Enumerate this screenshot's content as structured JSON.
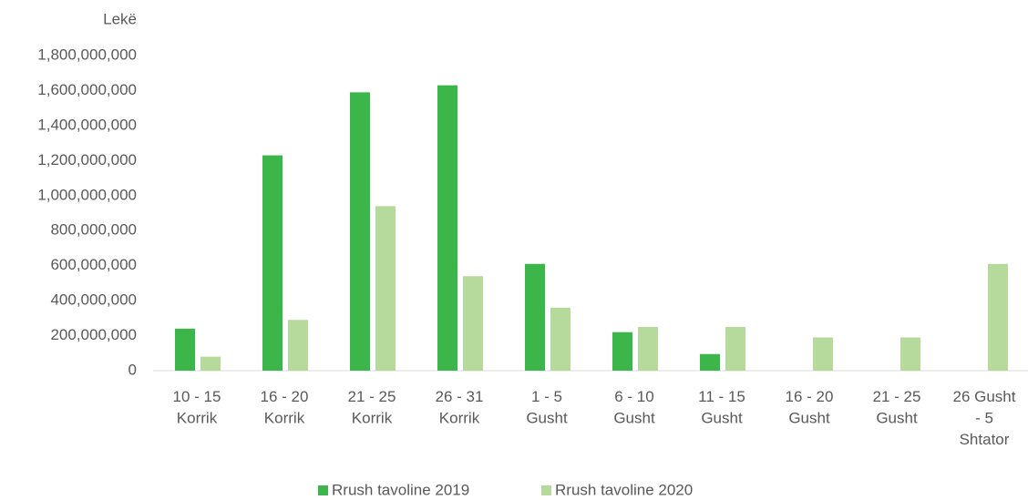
{
  "chart_data": {
    "type": "bar",
    "y_label": "Lekë",
    "categories": [
      [
        "10 - 15",
        "Korrik"
      ],
      [
        "16 - 20",
        "Korrik"
      ],
      [
        "21 - 25",
        "Korrik"
      ],
      [
        "26 - 31",
        "Korrik"
      ],
      [
        "1 - 5",
        "Gusht"
      ],
      [
        "6 - 10",
        "Gusht"
      ],
      [
        "11 - 15",
        "Gusht"
      ],
      [
        "16 - 20",
        "Gusht"
      ],
      [
        "21 - 25",
        "Gusht"
      ],
      [
        "26 Gusht",
        "- 5",
        "Shtator"
      ]
    ],
    "series": [
      {
        "name": "Rrush tavoline 2019",
        "color": "#3cb54a",
        "values": [
          240000000,
          1230000000,
          1590000000,
          1630000000,
          610000000,
          220000000,
          95000000,
          null,
          null,
          null
        ]
      },
      {
        "name": "Rrush tavoline 2020",
        "color": "#b6da9c",
        "values": [
          80000000,
          290000000,
          940000000,
          540000000,
          360000000,
          250000000,
          250000000,
          190000000,
          190000000,
          610000000
        ]
      }
    ],
    "ylim": [
      0,
      1800000000
    ],
    "yticks": [
      0,
      {
        "value": 200000000,
        "label": "200,000,000"
      },
      {
        "value": 400000000,
        "label": "400,000,000"
      },
      {
        "value": 600000000,
        "label": "600,000,000"
      },
      {
        "value": 800000000,
        "label": "800,000,000"
      },
      {
        "value": 1000000000,
        "label": "1,000,000,000"
      },
      {
        "value": 1200000000,
        "label": "1,200,000,000"
      },
      {
        "value": 1400000000,
        "label": "1,400,000,000"
      },
      {
        "value": 1600000000,
        "label": "1,600,000,000"
      },
      {
        "value": 1800000000,
        "label": "1,800,000,000"
      }
    ],
    "legend": "bottom"
  }
}
